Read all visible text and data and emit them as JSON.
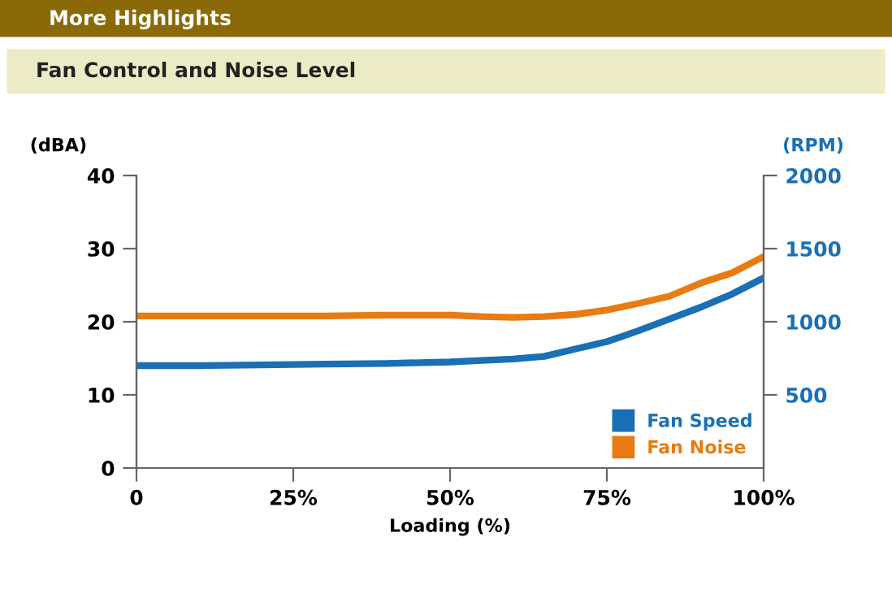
{
  "chart_data": {
    "type": "line",
    "title": "More Highlights",
    "subtitle": "Fan Control and Noise Level",
    "xlabel": "Loading (%)",
    "ylabel": "(dBA)",
    "y2label": "(RPM)",
    "x": [
      0,
      10,
      20,
      30,
      40,
      50,
      55,
      60,
      65,
      70,
      75,
      80,
      85,
      90,
      95,
      100
    ],
    "series": [
      {
        "name": "Fan Speed",
        "color": "#1a6fb5",
        "axis": "y2",
        "values": [
          700,
          700,
          705,
          710,
          715,
          725,
          735,
          745,
          763,
          814,
          864,
          938,
          1019,
          1100,
          1190,
          1300
        ]
      },
      {
        "name": "Fan Noise",
        "color": "#e87b12",
        "values": [
          20.8,
          20.8,
          20.8,
          20.8,
          20.9,
          20.9,
          20.7,
          20.6,
          20.7,
          21.0,
          21.6,
          22.5,
          23.5,
          25.3,
          26.7,
          28.9
        ]
      }
    ],
    "xlim": [
      0,
      100
    ],
    "xticks": [
      0,
      {
        "value": 25,
        "label": "25%"
      },
      {
        "value": 50,
        "label": "50%"
      },
      {
        "value": 75,
        "label": "75%"
      },
      {
        "value": 100,
        "label": "100%"
      }
    ],
    "ylim": [
      0,
      40
    ],
    "yticks": [
      0,
      10,
      20,
      30,
      40
    ],
    "y2lim": [
      0,
      2000
    ],
    "y2ticks": [
      500,
      1000,
      1500,
      2000
    ],
    "legend": "bottom right",
    "grid": false,
    "marker": "none",
    "line_style": "solid"
  }
}
